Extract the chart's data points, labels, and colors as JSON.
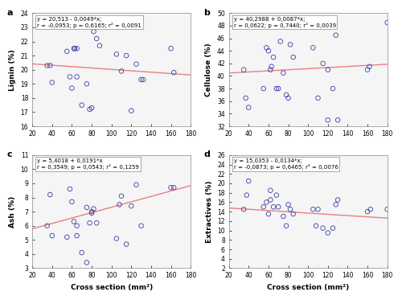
{
  "panels": [
    {
      "label": "a",
      "ylabel": "Lignin (%)",
      "equation": "y = 20,513 - 0,0049*x;",
      "stats": "r = -0,0953; p = 0,6165; r² = 0,0091",
      "slope": -0.0049,
      "intercept": 20.513,
      "ylim": [
        16,
        24
      ],
      "yticks": [
        16,
        17,
        18,
        19,
        20,
        21,
        22,
        23,
        24
      ],
      "x": [
        35,
        38,
        40,
        55,
        58,
        60,
        62,
        63,
        65,
        65,
        70,
        75,
        78,
        80,
        82,
        85,
        88,
        105,
        110,
        115,
        120,
        125,
        130,
        132,
        160,
        163
      ],
      "y": [
        20.3,
        20.3,
        19.1,
        21.3,
        19.5,
        18.7,
        21.5,
        21.5,
        21.5,
        19.5,
        17.5,
        19.0,
        17.2,
        17.3,
        22.7,
        22.2,
        21.7,
        21.1,
        19.9,
        21.0,
        17.1,
        20.4,
        19.3,
        19.3,
        21.5,
        19.8
      ]
    },
    {
      "label": "b",
      "ylabel": "Cellulose (%)",
      "equation": "y = 40,2988 + 0,0087*x;",
      "stats": "r = 0,0622; p = 0,7440; r² = 0,0039",
      "slope": 0.0087,
      "intercept": 40.2988,
      "ylim": [
        32,
        50
      ],
      "yticks": [
        32,
        34,
        36,
        38,
        40,
        42,
        44,
        46,
        48,
        50
      ],
      "x": [
        35,
        37,
        40,
        55,
        58,
        60,
        62,
        63,
        65,
        68,
        70,
        72,
        75,
        78,
        80,
        82,
        85,
        105,
        110,
        115,
        120,
        120,
        125,
        128,
        130,
        160,
        162,
        180
      ],
      "y": [
        41.0,
        36.5,
        35.0,
        38.0,
        44.5,
        44.0,
        41.0,
        41.5,
        43.0,
        38.0,
        38.0,
        45.5,
        40.5,
        37.0,
        36.5,
        45.0,
        43.0,
        44.5,
        36.5,
        42.0,
        33.0,
        41.0,
        38.0,
        46.5,
        33.0,
        41.0,
        41.5,
        48.5
      ]
    },
    {
      "label": "c",
      "ylabel": "Ash (%)",
      "equation": "y = 5,4018 + 0,0191*x",
      "stats": "r = 0,3549; p = 0,0543; r² = 0,1259",
      "slope": 0.0191,
      "intercept": 5.4018,
      "ylim": [
        3,
        11
      ],
      "yticks": [
        3,
        4,
        5,
        6,
        7,
        8,
        9,
        10,
        11
      ],
      "x": [
        35,
        38,
        40,
        55,
        58,
        60,
        62,
        65,
        65,
        70,
        75,
        75,
        78,
        80,
        80,
        82,
        85,
        105,
        108,
        110,
        115,
        120,
        125,
        130,
        160,
        163
      ],
      "y": [
        6.0,
        8.2,
        5.3,
        5.2,
        8.6,
        7.7,
        6.3,
        6.0,
        5.3,
        4.1,
        7.3,
        3.4,
        6.2,
        7.0,
        6.9,
        7.2,
        6.2,
        5.1,
        7.5,
        8.1,
        4.7,
        7.4,
        8.9,
        6.0,
        8.7,
        8.7
      ]
    },
    {
      "label": "d",
      "ylabel": "Extractives (%)",
      "equation": "y = 15,0353 - 0,0134*x;",
      "stats": "r = -0,0873; p = 0,6465; r² = 0,0076",
      "slope": -0.0134,
      "intercept": 15.0353,
      "ylim": [
        2,
        26
      ],
      "yticks": [
        2,
        4,
        6,
        8,
        10,
        12,
        14,
        16,
        18,
        20,
        22,
        24,
        26
      ],
      "x": [
        35,
        38,
        40,
        55,
        58,
        60,
        62,
        62,
        65,
        68,
        70,
        75,
        78,
        80,
        82,
        85,
        105,
        108,
        110,
        115,
        120,
        125,
        128,
        130,
        160,
        163,
        180
      ],
      "y": [
        14.5,
        17.5,
        20.5,
        15.0,
        16.0,
        13.5,
        18.5,
        16.5,
        15.0,
        17.5,
        15.0,
        13.0,
        11.0,
        15.5,
        14.5,
        13.5,
        14.5,
        11.0,
        14.5,
        10.5,
        9.5,
        10.5,
        15.5,
        16.5,
        14.0,
        14.5,
        14.5
      ]
    }
  ],
  "xlabel": "Cross section (mm²)",
  "xlim": [
    20,
    180
  ],
  "xticks": [
    20,
    40,
    60,
    80,
    100,
    120,
    140,
    160,
    180
  ],
  "marker_color": "#3a3aaa",
  "marker_facecolor": "none",
  "marker_size": 4,
  "line_color": "#e88080",
  "bg_color": "#ffffff",
  "plot_bg_color": "#f5f5f5",
  "box_color": "#ffffff"
}
